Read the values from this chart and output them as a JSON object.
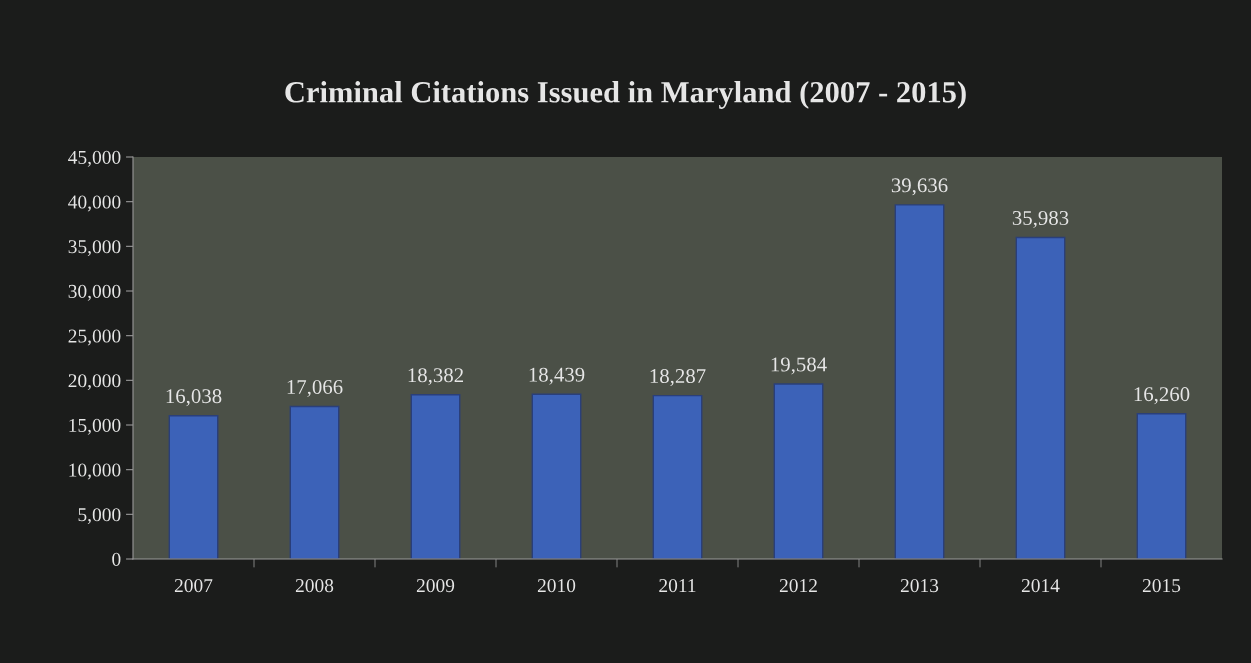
{
  "chart_data": {
    "type": "bar",
    "title": "Criminal Citations Issued in Maryland (2007 - 2015)",
    "categories": [
      "2007",
      "2008",
      "2009",
      "2010",
      "2011",
      "2012",
      "2013",
      "2014",
      "2015"
    ],
    "values": [
      16038,
      17066,
      18382,
      18439,
      18287,
      19584,
      39636,
      35983,
      16260
    ],
    "value_labels": [
      "16,038",
      "17,066",
      "18,382",
      "18,439",
      "18,287",
      "19,584",
      "39,636",
      "35,983",
      "16,260"
    ],
    "color": "#3c62b8",
    "ylim": [
      0,
      45000
    ],
    "yticks": [
      {
        "value": 0,
        "label": "0"
      },
      {
        "value": 5000,
        "label": "5,000"
      },
      {
        "value": 10000,
        "label": "10,000"
      },
      {
        "value": 15000,
        "label": "15,000"
      },
      {
        "value": 20000,
        "label": "20,000"
      },
      {
        "value": 25000,
        "label": "25,000"
      },
      {
        "value": 30000,
        "label": "30,000"
      },
      {
        "value": 35000,
        "label": "35,000"
      },
      {
        "value": 40000,
        "label": "40,000"
      },
      {
        "value": 45000,
        "label": "45,000"
      }
    ],
    "grid": false
  }
}
